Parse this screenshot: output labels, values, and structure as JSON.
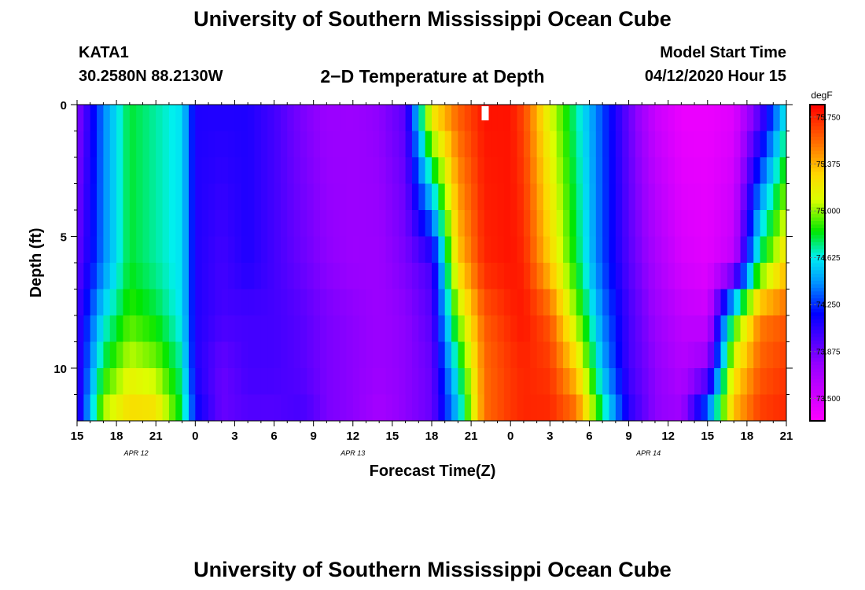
{
  "page": {
    "title_top": "University of Southern Mississippi Ocean Cube",
    "title_bottom": "University of Southern Mississippi Ocean Cube",
    "station_id": "KATA1",
    "station_coords": "30.2580N 88.2130W",
    "plot_title": "2−D Temperature at Depth",
    "model_start_label": "Model Start Time",
    "model_start_value": "04/12/2020 Hour 15"
  },
  "chart_data": {
    "type": "heatmap",
    "title": "2−D Temperature at Depth",
    "xlabel": "Forecast Time(Z)",
    "ylabel": "Depth (ft)",
    "x_unit": "hours from 04/12/2020 15Z",
    "x_range": [
      0,
      54
    ],
    "x_tick_values": [
      0,
      3,
      6,
      9,
      12,
      15,
      18,
      21,
      24,
      27,
      30,
      33,
      36,
      39,
      42,
      45,
      48,
      51,
      54
    ],
    "x_tick_labels": [
      "15",
      "18",
      "21",
      "0",
      "3",
      "6",
      "9",
      "12",
      "15",
      "18",
      "21",
      "0",
      "3",
      "6",
      "9",
      "12",
      "15",
      "18",
      "21"
    ],
    "date_labels": [
      {
        "text": "APR 12",
        "x": 4.5
      },
      {
        "text": "APR 13",
        "x": 21
      },
      {
        "text": "APR 14",
        "x": 43.5
      }
    ],
    "y_range": [
      0,
      12
    ],
    "y_reversed": true,
    "y_ticks": [
      0,
      5,
      10
    ],
    "y_tick_labels": [
      "0",
      "5",
      "10"
    ],
    "colorbar": {
      "unit": "degF",
      "range": [
        73.32,
        75.85
      ],
      "tick_values": [
        73.5,
        73.875,
        74.25,
        74.625,
        75.0,
        75.375,
        75.75
      ],
      "tick_labels": [
        "73.500",
        "73.875",
        "74.250",
        "74.625",
        "75.000",
        "75.375",
        "75.750"
      ]
    },
    "time_samples": [
      0,
      2,
      4,
      6,
      8,
      9,
      11,
      13,
      15,
      17,
      18,
      19,
      21,
      23,
      25,
      27,
      29,
      31,
      33,
      34,
      36,
      38,
      40,
      42,
      44,
      46,
      48,
      50,
      52,
      54
    ],
    "depth_samples": [
      0,
      6,
      8,
      10,
      12
    ],
    "temperature_degF": [
      [
        73.8,
        73.9,
        74.0,
        74.0,
        74.0
      ],
      [
        74.4,
        74.4,
        74.6,
        74.8,
        75.1
      ],
      [
        74.8,
        74.8,
        74.9,
        75.1,
        75.3
      ],
      [
        74.7,
        74.7,
        74.8,
        75.0,
        75.3
      ],
      [
        74.6,
        74.6,
        74.6,
        74.7,
        74.8
      ],
      [
        74.1,
        74.1,
        74.1,
        74.1,
        74.2
      ],
      [
        74.1,
        74.0,
        74.0,
        73.9,
        73.9
      ],
      [
        74.1,
        74.1,
        74.0,
        74.0,
        73.95
      ],
      [
        74.0,
        74.0,
        74.0,
        74.0,
        73.95
      ],
      [
        73.85,
        73.9,
        73.95,
        73.95,
        74.0
      ],
      [
        73.8,
        73.85,
        73.9,
        73.9,
        73.95
      ],
      [
        73.75,
        73.8,
        73.85,
        73.85,
        73.85
      ],
      [
        73.75,
        73.75,
        73.8,
        73.8,
        73.8
      ],
      [
        73.8,
        73.75,
        73.75,
        73.75,
        73.7
      ],
      [
        73.95,
        73.85,
        73.8,
        73.8,
        73.8
      ],
      [
        75.3,
        74.0,
        73.95,
        73.9,
        73.9
      ],
      [
        75.6,
        75.3,
        75.0,
        74.7,
        74.5
      ],
      [
        75.8,
        75.75,
        75.6,
        75.55,
        75.55
      ],
      [
        75.8,
        75.8,
        75.75,
        75.7,
        75.7
      ],
      [
        75.65,
        75.75,
        75.8,
        75.75,
        75.75
      ],
      [
        75.1,
        75.3,
        75.6,
        75.7,
        75.75
      ],
      [
        74.7,
        74.8,
        75.0,
        75.3,
        75.6
      ],
      [
        74.3,
        74.3,
        74.4,
        74.5,
        74.8
      ],
      [
        73.9,
        73.95,
        74.0,
        74.0,
        74.1
      ],
      [
        73.55,
        73.7,
        73.75,
        73.8,
        73.8
      ],
      [
        73.4,
        73.5,
        73.6,
        73.65,
        73.75
      ],
      [
        73.4,
        73.45,
        73.55,
        73.8,
        74.5
      ],
      [
        73.45,
        73.6,
        74.8,
        75.2,
        75.4
      ],
      [
        73.9,
        74.8,
        75.5,
        75.6,
        75.7
      ],
      [
        74.6,
        75.3,
        75.6,
        75.7,
        75.75
      ]
    ]
  }
}
